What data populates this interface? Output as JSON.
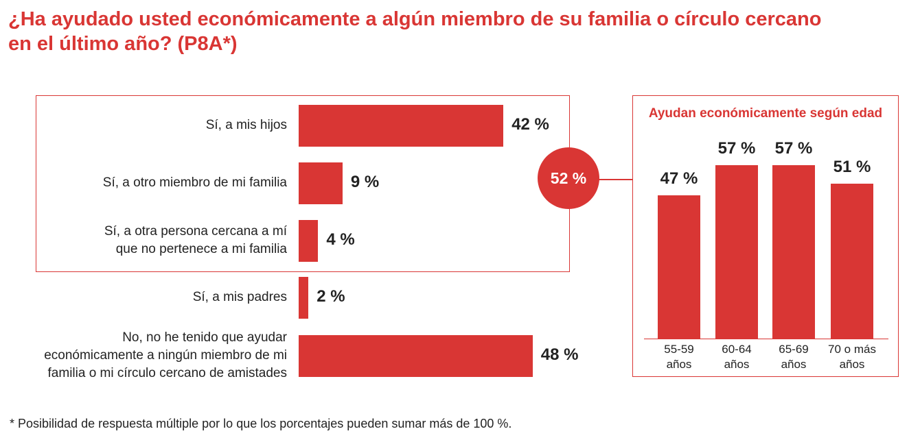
{
  "title_lines": [
    "¿Ha ayudado usted económicamente a algún miembro de su familia o círculo cercano",
    "en el último año? (P8A*)"
  ],
  "highlight": {
    "total_label": "52 %",
    "total_value": 52
  },
  "chart_data": [
    {
      "type": "bar",
      "orientation": "horizontal",
      "title": "¿Ha ayudado usted económicamente a algún miembro de su familia o círculo cercano en el último año? (P8A*)",
      "categories": [
        [
          "Sí, a mis hijos"
        ],
        [
          "Sí, a otro miembro de mi familia"
        ],
        [
          "Sí, a otra persona cercana a mí",
          "que no pertenece a mi familia"
        ],
        [
          "Sí, a mis padres"
        ],
        [
          "No, no he tenido que ayudar",
          "económicamente a ningún miembro de mi",
          "familia o mi círculo cercano de amistades"
        ]
      ],
      "values": [
        42,
        9,
        4,
        2,
        48
      ],
      "value_labels": [
        "42 %",
        "9 %",
        "4 %",
        "2 %",
        "48 %"
      ],
      "unit": "%",
      "xlim": [
        0,
        100
      ]
    },
    {
      "type": "bar",
      "orientation": "vertical",
      "title": "Ayudan económicamente según edad",
      "categories": [
        [
          "55-59",
          "años"
        ],
        [
          "60-64",
          "años"
        ],
        [
          "65-69",
          "años"
        ],
        [
          "70 o más",
          "años"
        ]
      ],
      "values": [
        47,
        57,
        57,
        51
      ],
      "value_labels": [
        "47 %",
        "57 %",
        "57 %",
        "51 %"
      ],
      "unit": "%",
      "ylim": [
        0,
        100
      ]
    }
  ],
  "footnote": "* Posibilidad de respuesta múltiple por lo que los porcentajes pueden sumar más de 100 %.",
  "colors": {
    "accent": "#d93634",
    "text": "#222222",
    "background": "#ffffff"
  }
}
